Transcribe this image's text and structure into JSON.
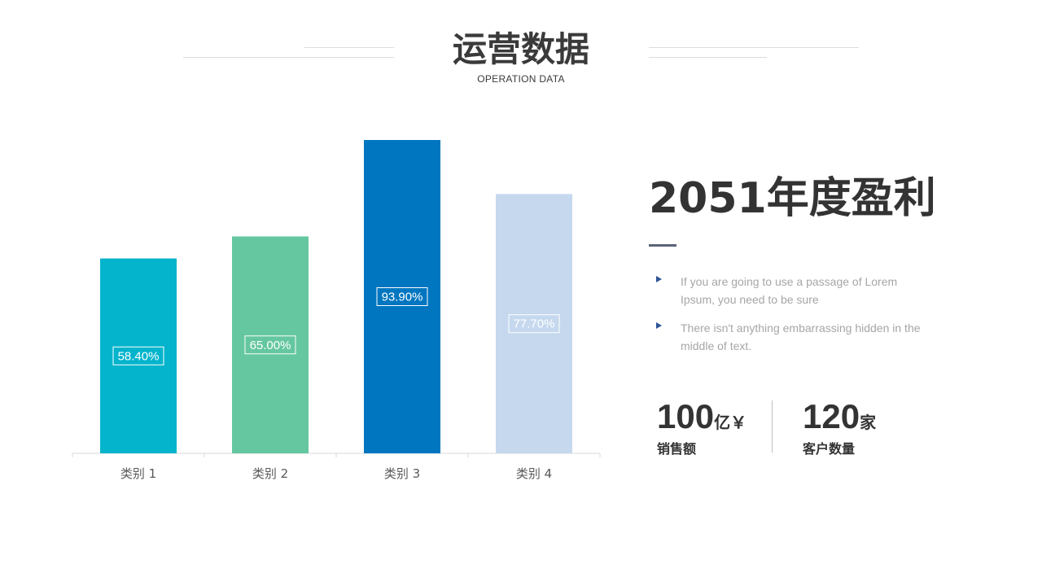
{
  "header": {
    "title": "运营数据",
    "subtitle": "OPERATION DATA"
  },
  "chart_data": {
    "type": "bar",
    "categories": [
      "类别 1",
      "类别 2",
      "类别 3",
      "类别 4"
    ],
    "values": [
      58.4,
      65.0,
      93.9,
      77.7
    ],
    "data_labels": [
      "58.40%",
      "65.00%",
      "93.90%",
      "77.70%"
    ],
    "colors": [
      "#04b4cc",
      "#65c7a0",
      "#0076c0",
      "#c5d8ee"
    ],
    "ylim": [
      0,
      100
    ],
    "grid": false,
    "title": "",
    "xlabel": "",
    "ylabel": ""
  },
  "summary": {
    "title": "2051年度盈利",
    "bullets": [
      "If you are going to use a passage of Lorem Ipsum, you need to be sure",
      "There isn't anything embarrassing hidden in the middle of text."
    ]
  },
  "stats": [
    {
      "number": "100",
      "unit": "亿￥",
      "label": "销售额"
    },
    {
      "number": "120",
      "unit": "家",
      "label": "客户数量"
    }
  ],
  "colors": {
    "text_dark": "#333333",
    "bullet_icon": "#2f5597",
    "accent_line": "#5a6478"
  },
  "icons": {
    "bullet": "arrow-bullet-icon"
  }
}
